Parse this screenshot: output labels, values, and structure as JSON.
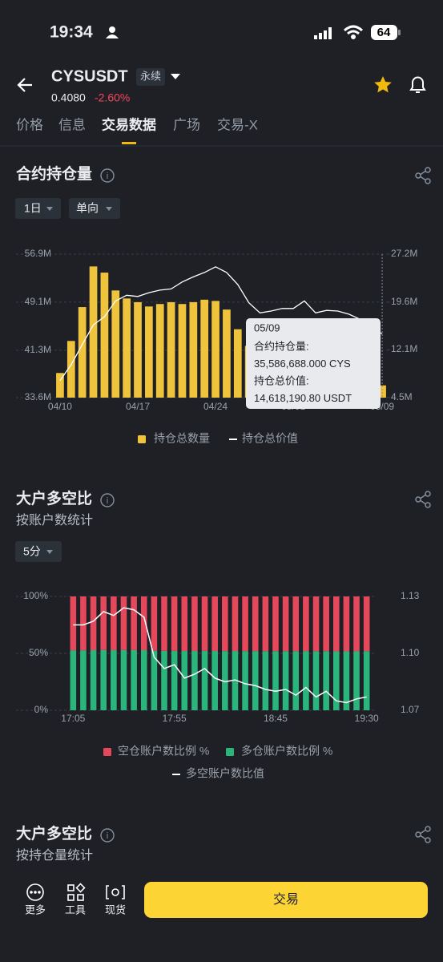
{
  "status_bar": {
    "time": "19:34",
    "battery": "64"
  },
  "header": {
    "symbol": "CYSUSDT",
    "tag": "永续",
    "price": "0.4080",
    "change": "-2.60%"
  },
  "tabs": {
    "items": [
      "价格",
      "信息",
      "交易数据",
      "广场",
      "交易-X"
    ],
    "active": 2
  },
  "section1": {
    "title": "合约持仓量",
    "filters": [
      "1日",
      "单向"
    ]
  },
  "section2": {
    "title": "大户多空比",
    "subtitle": "按账户数统计",
    "filter": "5分"
  },
  "section3": {
    "title": "大户多空比",
    "subtitle": "按持仓量统计"
  },
  "bottom_nav": {
    "items": [
      "更多",
      "工具",
      "现货"
    ],
    "trade_button": "交易"
  },
  "chart_data": [
    {
      "type": "bar",
      "grid": true,
      "categories": [
        "04/10",
        null,
        null,
        null,
        null,
        null,
        null,
        "04/17",
        null,
        null,
        null,
        null,
        null,
        null,
        "04/24",
        null,
        null,
        null,
        null,
        null,
        null,
        "05/01",
        null,
        null,
        null,
        null,
        null,
        null,
        null,
        "05/09"
      ],
      "series": [
        {
          "name": "持仓总数量",
          "color": "#f0c33c",
          "values": [
            37600000,
            42800000,
            48300000,
            54900000,
            53900000,
            51000000,
            49700000,
            49100000,
            48400000,
            48800000,
            49100000,
            48800000,
            49100000,
            49500000,
            49300000,
            47900000,
            44700000,
            42000000,
            40000000,
            39000000,
            38000000,
            37500000,
            37000000,
            37000000,
            36500000,
            36500000,
            36000000,
            36000000,
            35800000,
            35586688
          ]
        },
        {
          "name": "持仓总价值",
          "color": "#ffffff",
          "type": "line",
          "axis": "y2",
          "values": [
            7200000,
            9700000,
            12900000,
            16000000,
            17300000,
            19800000,
            20700000,
            20500000,
            21100000,
            21500000,
            21700000,
            22800000,
            23600000,
            24300000,
            25200000,
            24300000,
            22400000,
            19500000,
            17900000,
            18200000,
            18600000,
            18600000,
            19800000,
            17900000,
            18300000,
            18200000,
            17700000,
            16900000,
            15400000,
            14618190.8
          ]
        }
      ],
      "ylim": [
        33600000,
        56900000
      ],
      "yticks": [
        {
          "value": 33600000,
          "label": "33.6M"
        },
        {
          "value": 41300000,
          "label": "41.3M"
        },
        {
          "value": 49100000,
          "label": "49.1M"
        },
        {
          "value": 56900000,
          "label": "56.9M"
        }
      ],
      "y2lim": [
        4500000,
        27200000
      ],
      "y2ticks": [
        {
          "value": 4500000,
          "label": "4.5M"
        },
        {
          "value": 12100000,
          "label": "12.1M"
        },
        {
          "value": 19600000,
          "label": "19.6M"
        },
        {
          "value": 27200000,
          "label": "27.2M"
        }
      ],
      "tooltip": {
        "title": "05/09",
        "lines": [
          "合约持仓量:",
          "35,586,688.000 CYS",
          "持仓总价值:",
          "14,618,190.80 USDT"
        ]
      }
    },
    {
      "type": "bar",
      "stacked": true,
      "grid": true,
      "categories": [
        "17:05",
        null,
        null,
        null,
        null,
        null,
        null,
        null,
        null,
        null,
        "17:55",
        null,
        null,
        null,
        null,
        null,
        null,
        null,
        null,
        null,
        "18:45",
        null,
        null,
        null,
        null,
        null,
        null,
        null,
        null,
        "19:30"
      ],
      "series": [
        {
          "name": "空仓账户数比例 %",
          "color": "#e5475b",
          "values": [
            47.3,
            47.3,
            47.2,
            47.1,
            47.2,
            47.1,
            47.1,
            47.2,
            47.7,
            47.8,
            47.8,
            47.9,
            47.9,
            47.8,
            47.9,
            48.0,
            47.9,
            48.0,
            48.0,
            48.1,
            48.1,
            48.1,
            48.1,
            48.0,
            48.1,
            48.1,
            48.2,
            48.2,
            48.2,
            48.1
          ]
        },
        {
          "name": "多仓账户数比例 %",
          "color": "#2ab57d",
          "values": [
            52.7,
            52.7,
            52.8,
            52.9,
            52.8,
            52.9,
            52.9,
            52.8,
            52.3,
            52.2,
            52.2,
            52.1,
            52.1,
            52.2,
            52.1,
            52.0,
            52.1,
            52.0,
            52.0,
            51.9,
            51.9,
            51.9,
            51.9,
            52.0,
            51.9,
            51.9,
            51.8,
            51.8,
            51.8,
            51.9
          ]
        },
        {
          "name": "多空账户数比值",
          "color": "#ffffff",
          "type": "line",
          "axis": "y2",
          "values": [
            1.115,
            1.115,
            1.117,
            1.122,
            1.12,
            1.124,
            1.123,
            1.119,
            1.098,
            1.092,
            1.094,
            1.087,
            1.089,
            1.092,
            1.087,
            1.085,
            1.086,
            1.084,
            1.083,
            1.081,
            1.08,
            1.081,
            1.078,
            1.082,
            1.077,
            1.08,
            1.075,
            1.074,
            1.076,
            1.077
          ]
        }
      ],
      "ylim": [
        0,
        100
      ],
      "yticks": [
        {
          "value": 0,
          "label": "0%"
        },
        {
          "value": 50,
          "label": "50%"
        },
        {
          "value": 100,
          "label": "100%"
        }
      ],
      "y2lim": [
        1.07,
        1.13
      ],
      "y2ticks": [
        1.07,
        {
          "value": 1.1,
          "label": "1.10"
        },
        1.13
      ]
    }
  ]
}
